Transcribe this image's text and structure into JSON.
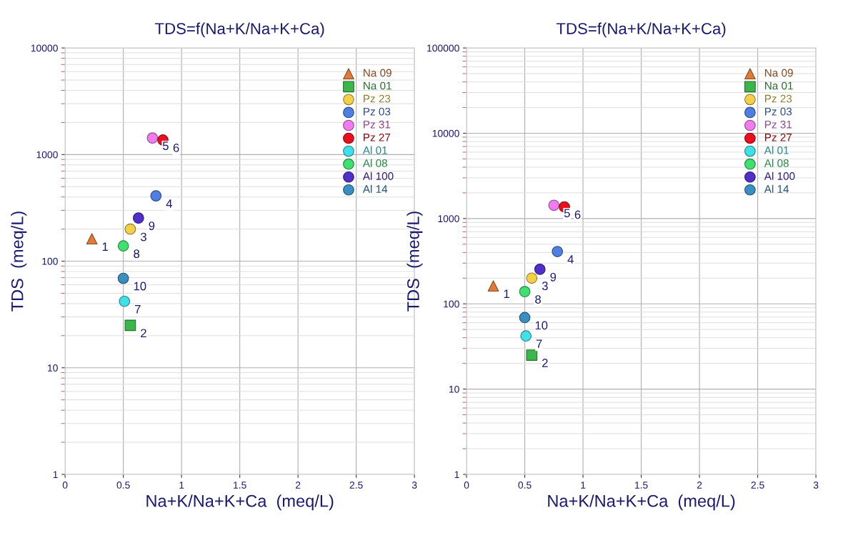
{
  "chart_data": [
    {
      "type": "scatter",
      "title": "TDS=f(Na+K/Na+K+Ca)",
      "xlabel": "Na+K/Na+K+Ca  (meq/L)",
      "ylabel": "TDS  (meq/L)",
      "log": "y",
      "grid": true,
      "legend": "top right",
      "xlim": [
        0,
        3
      ],
      "xticks": [
        0,
        0.5,
        1,
        1.5,
        2,
        2.5,
        3
      ],
      "ylim": [
        1,
        10000
      ],
      "yticks": [
        1,
        10,
        100,
        1000,
        10000
      ],
      "series": [
        {
          "name": "Na 09",
          "color": "#e07b39",
          "marker": "triangle",
          "x": [
            0.23
          ],
          "values": [
            162
          ]
        },
        {
          "name": "Na 01",
          "color": "#3cb64a",
          "marker": "square",
          "x": [
            0.56
          ],
          "values": [
            25
          ]
        },
        {
          "name": "Pz 23",
          "color": "#f2d04a",
          "marker": "circle",
          "x": [
            0.56
          ],
          "values": [
            200
          ]
        },
        {
          "name": "Pz 03",
          "color": "#4f7fe0",
          "marker": "circle",
          "x": [
            0.78
          ],
          "values": [
            410
          ]
        },
        {
          "name": "Pz 31",
          "color": "#f07cf0",
          "marker": "circle",
          "x": [
            0.75
          ],
          "values": [
            1430
          ]
        },
        {
          "name": "Pz 27",
          "color": "#e8101c",
          "marker": "circle",
          "x": [
            0.84
          ],
          "values": [
            1370
          ]
        },
        {
          "name": "Al 01",
          "color": "#40e0e8",
          "marker": "circle",
          "x": [
            0.51
          ],
          "values": [
            42
          ]
        },
        {
          "name": "Al 08",
          "color": "#3fe070",
          "marker": "circle",
          "x": [
            0.5
          ],
          "values": [
            139
          ]
        },
        {
          "name": "Al 100",
          "color": "#5030c8",
          "marker": "circle",
          "x": [
            0.63
          ],
          "values": [
            254
          ]
        },
        {
          "name": "Al 14",
          "color": "#3a8fc0",
          "marker": "circle",
          "x": [
            0.5
          ],
          "values": [
            69
          ]
        }
      ],
      "annotations": [
        {
          "text": "1",
          "x": 0.23,
          "y": 162
        },
        {
          "text": "2",
          "x": 0.56,
          "y": 25
        },
        {
          "text": "3",
          "x": 0.56,
          "y": 200
        },
        {
          "text": "4",
          "x": 0.78,
          "y": 410
        },
        {
          "text": "5",
          "x": 0.75,
          "y": 1430
        },
        {
          "text": "6",
          "x": 0.84,
          "y": 1370
        },
        {
          "text": "7",
          "x": 0.51,
          "y": 42
        },
        {
          "text": "8",
          "x": 0.5,
          "y": 139
        },
        {
          "text": "9",
          "x": 0.63,
          "y": 254
        },
        {
          "text": "10",
          "x": 0.5,
          "y": 69
        }
      ]
    },
    {
      "type": "scatter",
      "title": "TDS=f(Na+K/Na+K+Ca)",
      "xlabel": "Na+K/Na+K+Ca  (meq/L)",
      "ylabel": "TDS  (meq/L)",
      "log": "y",
      "grid": true,
      "legend": "top right",
      "xlim": [
        0,
        3
      ],
      "xticks": [
        0,
        0.5,
        1,
        1.5,
        2,
        2.5,
        3
      ],
      "ylim": [
        1,
        100000
      ],
      "yticks": [
        1,
        10,
        100,
        1000,
        10000,
        100000
      ],
      "series": [
        {
          "name": "Na 09",
          "color": "#e07b39",
          "marker": "triangle",
          "x": [
            0.23
          ],
          "values": [
            162
          ]
        },
        {
          "name": "Na 01",
          "color": "#3cb64a",
          "marker": "square",
          "x": [
            0.56
          ],
          "values": [
            25
          ]
        },
        {
          "name": "Pz 23",
          "color": "#f2d04a",
          "marker": "circle",
          "x": [
            0.56
          ],
          "values": [
            200
          ]
        },
        {
          "name": "Pz 03",
          "color": "#4f7fe0",
          "marker": "circle",
          "x": [
            0.78
          ],
          "values": [
            410
          ]
        },
        {
          "name": "Pz 31",
          "color": "#f07cf0",
          "marker": "circle",
          "x": [
            0.75
          ],
          "values": [
            1430
          ]
        },
        {
          "name": "Pz 27",
          "color": "#e8101c",
          "marker": "circle",
          "x": [
            0.84
          ],
          "values": [
            1370
          ]
        },
        {
          "name": "Al 01",
          "color": "#40e0e8",
          "marker": "circle",
          "x": [
            0.51
          ],
          "values": [
            42
          ]
        },
        {
          "name": "Al 08",
          "color": "#3fe070",
          "marker": "circle",
          "x": [
            0.5
          ],
          "values": [
            139
          ]
        },
        {
          "name": "Al 100",
          "color": "#5030c8",
          "marker": "circle",
          "x": [
            0.63
          ],
          "values": [
            254
          ]
        },
        {
          "name": "Al 14",
          "color": "#3a8fc0",
          "marker": "circle",
          "x": [
            0.5
          ],
          "values": [
            69
          ]
        }
      ],
      "annotations": [
        {
          "text": "1",
          "x": 0.23,
          "y": 162
        },
        {
          "text": "2",
          "x": 0.56,
          "y": 25
        },
        {
          "text": "3",
          "x": 0.56,
          "y": 200
        },
        {
          "text": "4",
          "x": 0.78,
          "y": 410
        },
        {
          "text": "5",
          "x": 0.75,
          "y": 1430
        },
        {
          "text": "6",
          "x": 0.84,
          "y": 1370
        },
        {
          "text": "7",
          "x": 0.51,
          "y": 42
        },
        {
          "text": "8",
          "x": 0.5,
          "y": 139
        },
        {
          "text": "9",
          "x": 0.63,
          "y": 254
        },
        {
          "text": "10",
          "x": 0.5,
          "y": 69
        }
      ]
    }
  ]
}
